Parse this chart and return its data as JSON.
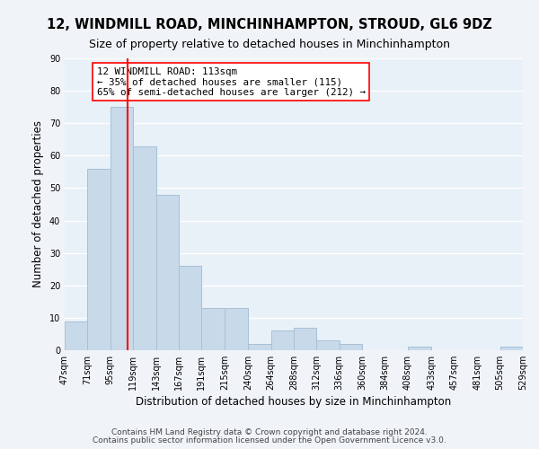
{
  "title": "12, WINDMILL ROAD, MINCHINHAMPTON, STROUD, GL6 9DZ",
  "subtitle": "Size of property relative to detached houses in Minchinhampton",
  "xlabel": "Distribution of detached houses by size in Minchinhampton",
  "ylabel": "Number of detached properties",
  "bar_color": "#c8daea",
  "bar_edge_color": "#a8c0d6",
  "vline_x": 113,
  "vline_color": "red",
  "annotation_title": "12 WINDMILL ROAD: 113sqm",
  "annotation_line1": "← 35% of detached houses are smaller (115)",
  "annotation_line2": "65% of semi-detached houses are larger (212) →",
  "annotation_box_color": "white",
  "annotation_box_edge": "red",
  "bins": [
    47,
    71,
    95,
    119,
    143,
    167,
    191,
    215,
    240,
    264,
    288,
    312,
    336,
    360,
    384,
    408,
    433,
    457,
    481,
    505,
    529
  ],
  "counts": [
    9,
    56,
    75,
    63,
    48,
    26,
    13,
    13,
    2,
    6,
    7,
    3,
    2,
    0,
    0,
    1,
    0,
    0,
    0,
    1
  ],
  "ylim": [
    0,
    90
  ],
  "yticks": [
    0,
    10,
    20,
    30,
    40,
    50,
    60,
    70,
    80,
    90
  ],
  "xtick_labels": [
    "47sqm",
    "71sqm",
    "95sqm",
    "119sqm",
    "143sqm",
    "167sqm",
    "191sqm",
    "215sqm",
    "240sqm",
    "264sqm",
    "288sqm",
    "312sqm",
    "336sqm",
    "360sqm",
    "384sqm",
    "408sqm",
    "433sqm",
    "457sqm",
    "481sqm",
    "505sqm",
    "529sqm"
  ],
  "footer_line1": "Contains HM Land Registry data © Crown copyright and database right 2024.",
  "footer_line2": "Contains public sector information licensed under the Open Government Licence v3.0.",
  "background_color": "#f0f4f8",
  "plot_background": "#e8f0f8",
  "grid_color": "white",
  "title_fontsize": 10.5,
  "subtitle_fontsize": 9,
  "xlabel_fontsize": 8.5,
  "ylabel_fontsize": 8.5,
  "tick_fontsize": 7,
  "footer_fontsize": 6.5,
  "ann_fontsize": 7.8
}
